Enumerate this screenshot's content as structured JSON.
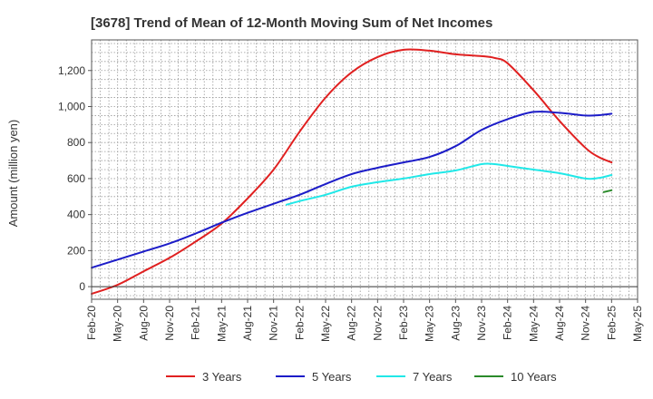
{
  "chart_data": {
    "type": "line",
    "title": "[3678]  Trend of Mean of 12-Month Moving Sum of Net Incomes",
    "ylabel": "Amount (million yen)",
    "xlabel": "",
    "ylim": [
      -70,
      1370
    ],
    "yticks": [
      0,
      200,
      400,
      600,
      800,
      "1,000",
      "1,200"
    ],
    "ytick_values": [
      0,
      200,
      400,
      600,
      800,
      1000,
      1200
    ],
    "x_categories": [
      "Feb-20",
      "May-20",
      "Aug-20",
      "Nov-20",
      "Feb-21",
      "May-21",
      "Aug-21",
      "Nov-21",
      "Feb-22",
      "May-22",
      "Aug-22",
      "Nov-22",
      "Feb-23",
      "May-23",
      "Aug-23",
      "Nov-23",
      "Feb-24",
      "May-24",
      "Aug-24",
      "Nov-24",
      "Feb-25",
      "May-25"
    ],
    "grid": true,
    "legend_position": "bottom",
    "series": [
      {
        "name": "3 Years",
        "color": "#e02020",
        "points": [
          [
            0,
            -40
          ],
          [
            1,
            10
          ],
          [
            2,
            85
          ],
          [
            3,
            160
          ],
          [
            4,
            250
          ],
          [
            5,
            350
          ],
          [
            6,
            490
          ],
          [
            7,
            650
          ],
          [
            8,
            860
          ],
          [
            9,
            1050
          ],
          [
            10,
            1190
          ],
          [
            11,
            1275
          ],
          [
            12,
            1315
          ],
          [
            13,
            1310
          ],
          [
            14,
            1290
          ],
          [
            15,
            1280
          ],
          [
            15.5,
            1270
          ],
          [
            16,
            1240
          ],
          [
            17,
            1090
          ],
          [
            18,
            920
          ],
          [
            19,
            770
          ],
          [
            19.5,
            720
          ],
          [
            20,
            690
          ]
        ]
      },
      {
        "name": "5 Years",
        "color": "#1c1cc8",
        "points": [
          [
            0,
            105
          ],
          [
            1,
            150
          ],
          [
            2,
            195
          ],
          [
            3,
            240
          ],
          [
            4,
            295
          ],
          [
            5,
            355
          ],
          [
            6,
            410
          ],
          [
            7,
            460
          ],
          [
            8,
            510
          ],
          [
            9,
            570
          ],
          [
            10,
            625
          ],
          [
            11,
            660
          ],
          [
            12,
            690
          ],
          [
            13,
            720
          ],
          [
            14,
            780
          ],
          [
            15,
            870
          ],
          [
            16,
            930
          ],
          [
            17,
            970
          ],
          [
            18,
            965
          ],
          [
            19,
            950
          ],
          [
            19.5,
            952
          ],
          [
            20,
            960
          ]
        ]
      },
      {
        "name": "7 Years",
        "color": "#20e8e8",
        "points": [
          [
            7.5,
            455
          ],
          [
            8,
            475
          ],
          [
            9,
            510
          ],
          [
            10,
            555
          ],
          [
            11,
            580
          ],
          [
            12,
            600
          ],
          [
            13,
            625
          ],
          [
            14,
            645
          ],
          [
            15,
            680
          ],
          [
            15.5,
            680
          ],
          [
            16,
            670
          ],
          [
            17,
            650
          ],
          [
            18,
            630
          ],
          [
            19,
            600
          ],
          [
            19.5,
            603
          ],
          [
            20,
            620
          ]
        ]
      },
      {
        "name": "10 Years",
        "color": "#2a8a2a",
        "points": [
          [
            19.7,
            525
          ],
          [
            20,
            535
          ]
        ]
      }
    ]
  }
}
